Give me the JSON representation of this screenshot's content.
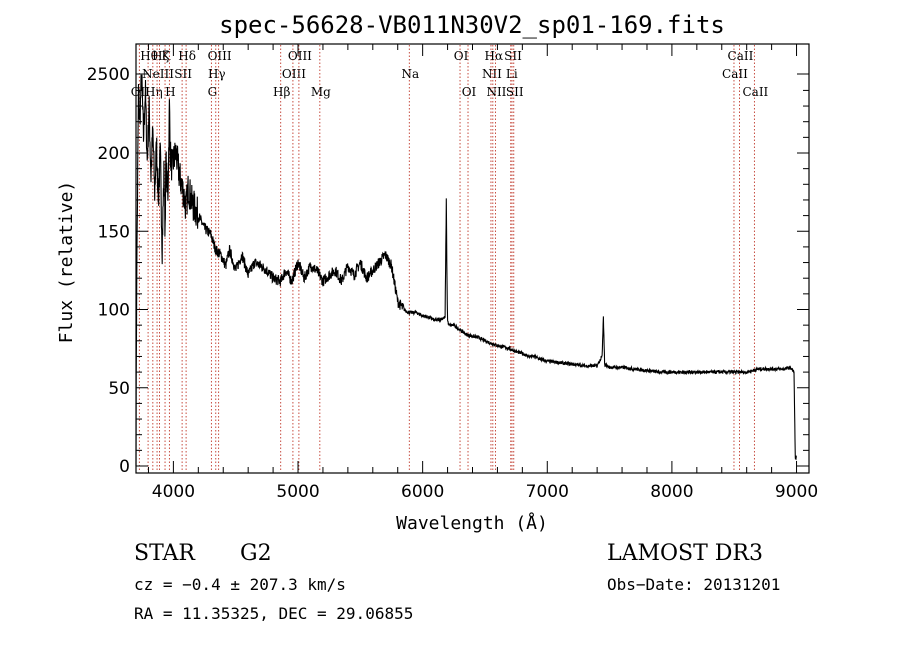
{
  "chart_data": {
    "type": "line",
    "title": "spec-56628-VB011N30V2_sp01-169.fits",
    "xlabel": "Wavelength (Å)",
    "ylabel": "Flux (relative)",
    "xlim": [
      3700,
      9100
    ],
    "ylim": [
      -5,
      2650
    ],
    "x_ticks": [
      4000,
      5000,
      6000,
      7000,
      8000,
      9000
    ],
    "y_ticks": [
      0,
      50,
      100,
      150,
      200,
      2500
    ],
    "series": [
      {
        "name": "spectrum",
        "x": [
          3700,
          3705,
          3720,
          3730,
          3745,
          3760,
          3775,
          3790,
          3805,
          3820,
          3835,
          3850,
          3865,
          3880,
          3895,
          3910,
          3925,
          3933,
          3940,
          3955,
          3968,
          3975,
          3990,
          4000,
          4020,
          4050,
          4080,
          4101,
          4120,
          4150,
          4200,
          4250,
          4300,
          4340,
          4380,
          4420,
          4450,
          4500,
          4550,
          4600,
          4650,
          4700,
          4750,
          4800,
          4861,
          4900,
          4950,
          5000,
          5050,
          5100,
          5150,
          5200,
          5250,
          5300,
          5350,
          5400,
          5450,
          5500,
          5550,
          5600,
          5650,
          5700,
          5750,
          5800,
          5850,
          5890,
          5950,
          6000,
          6050,
          6100,
          6150,
          6180,
          6190,
          6195,
          6200,
          6210,
          6250,
          6300,
          6350,
          6400,
          6450,
          6500,
          6563,
          6600,
          6650,
          6700,
          6750,
          6800,
          6850,
          6900,
          6950,
          7000,
          7100,
          7200,
          7300,
          7400,
          7440,
          7450,
          7460,
          7500,
          7600,
          7700,
          7800,
          7900,
          8000,
          8100,
          8200,
          8300,
          8400,
          8500,
          8600,
          8700,
          8800,
          8900,
          8950,
          8980,
          8990,
          9000
        ],
        "values": [
          5,
          110,
          240,
          220,
          250,
          210,
          240,
          195,
          230,
          185,
          215,
          175,
          205,
          170,
          200,
          140,
          190,
          150,
          195,
          170,
          230,
          200,
          190,
          195,
          200,
          185,
          175,
          165,
          178,
          168,
          160,
          152,
          148,
          138,
          135,
          128,
          138,
          125,
          135,
          122,
          130,
          128,
          125,
          120,
          118,
          125,
          118,
          130,
          120,
          128,
          125,
          118,
          122,
          125,
          118,
          128,
          122,
          130,
          120,
          125,
          130,
          135,
          128,
          105,
          100,
          98,
          98,
          96,
          95,
          93,
          94,
          95,
          170,
          120,
          93,
          90,
          90,
          87,
          84,
          83,
          82,
          80,
          78,
          77,
          76,
          75,
          73,
          72,
          70,
          70,
          68,
          67,
          66,
          65,
          64,
          64,
          70,
          95,
          65,
          63,
          63,
          62,
          61,
          60,
          60,
          60,
          60,
          60,
          60,
          60,
          60,
          62,
          62,
          62,
          63,
          60,
          5,
          5
        ]
      }
    ],
    "lines": [
      {
        "x": 3727,
        "name": "OII",
        "row": 2
      },
      {
        "x": 3797,
        "name": "Hθ",
        "row": 0
      },
      {
        "x": 3835,
        "name": "Hη",
        "row": 2
      },
      {
        "x": 3869,
        "name": "NeIII",
        "row": 1
      },
      {
        "x": 3889,
        "name": "Hζ",
        "row": 0
      },
      {
        "x": 3933,
        "name": "K",
        "row": 0
      },
      {
        "x": 3968,
        "name": "H",
        "row": 2
      },
      {
        "x": 4070,
        "name": "SII",
        "row": 1
      },
      {
        "x": 4102,
        "name": "Hδ",
        "row": 0
      },
      {
        "x": 4305,
        "name": "G",
        "row": 2
      },
      {
        "x": 4340,
        "name": "Hγ",
        "row": 1
      },
      {
        "x": 4363,
        "name": "OIII",
        "row": 0
      },
      {
        "x": 4861,
        "name": "Hβ",
        "row": 2
      },
      {
        "x": 4959,
        "name": "OIII",
        "row": 1
      },
      {
        "x": 5007,
        "name": "OIII",
        "row": 0
      },
      {
        "x": 5175,
        "name": "Mg",
        "row": 2
      },
      {
        "x": 5893,
        "name": "Na",
        "row": 1
      },
      {
        "x": 6300,
        "name": "OI",
        "row": 0
      },
      {
        "x": 6364,
        "name": "OI",
        "row": 2
      },
      {
        "x": 6548,
        "name": "NII",
        "row": 1
      },
      {
        "x": 6563,
        "name": "Hα",
        "row": 0
      },
      {
        "x": 6584,
        "name": "NII",
        "row": 2
      },
      {
        "x": 6707,
        "name": "Li",
        "row": 1
      },
      {
        "x": 6717,
        "name": "SII",
        "row": 0
      },
      {
        "x": 6731,
        "name": "SII",
        "row": 2
      },
      {
        "x": 8498,
        "name": "CaII",
        "row": 1
      },
      {
        "x": 8542,
        "name": "CaII",
        "row": 0
      },
      {
        "x": 8662,
        "name": "CaII",
        "row": 2
      }
    ]
  },
  "info": {
    "object_class": "STAR",
    "subclass": "G2",
    "survey": "LAMOST DR3",
    "cz": "cz = −0.4 ± 207.3 km/s",
    "obs_date": "Obs−Date: 20131201",
    "coords": "RA =  11.35325, DEC =  29.06855"
  },
  "colors": {
    "axis": "#000000",
    "spectrum": "#000000",
    "line_marker": "#c0392b"
  }
}
